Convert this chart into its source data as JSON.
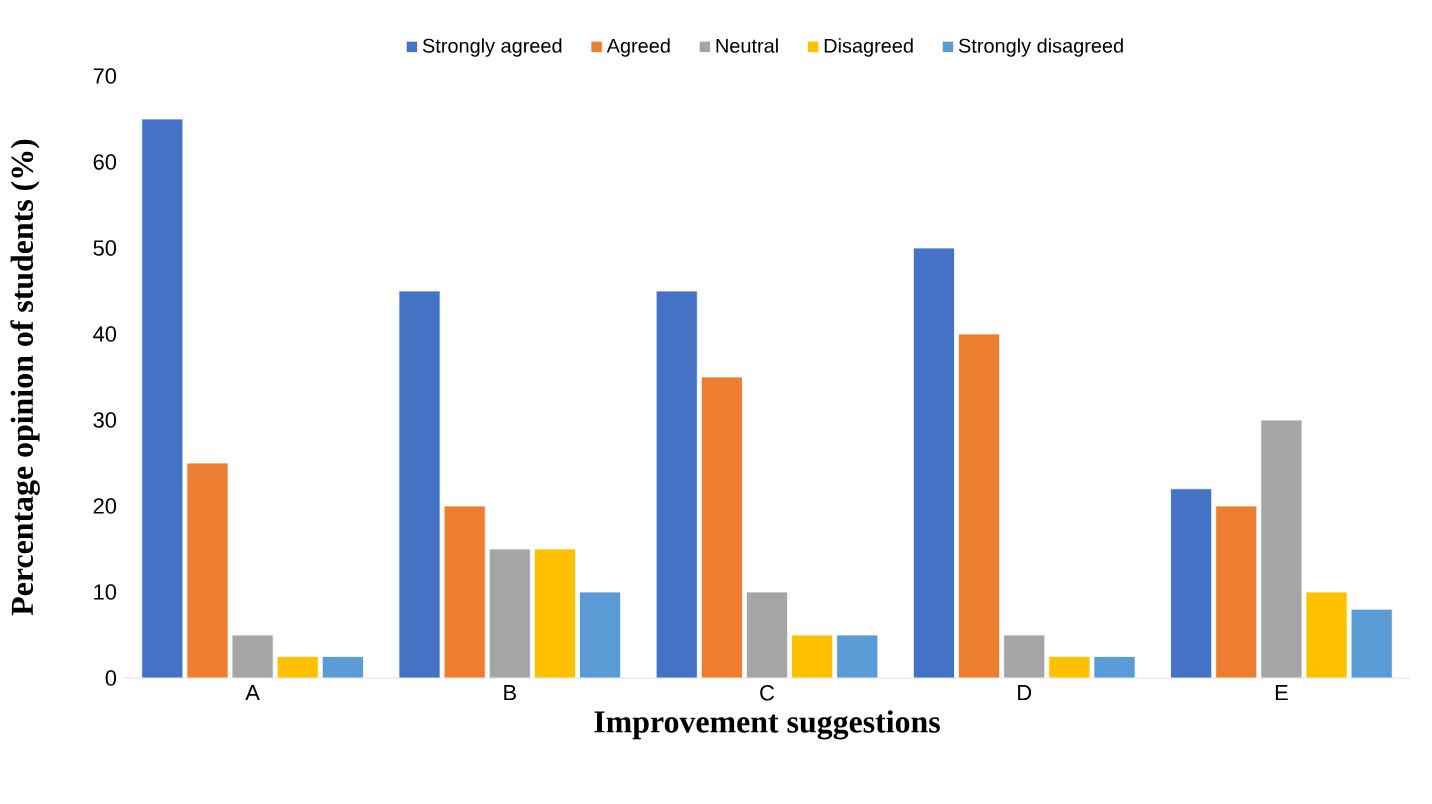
{
  "chart_data": {
    "type": "bar",
    "xlabel": "Improvement suggestions",
    "ylabel": "Percentage opinion of students (%)",
    "categories": [
      "A",
      "B",
      "C",
      "D",
      "E"
    ],
    "series": [
      {
        "name": "Strongly agreed",
        "color": "#4472c4",
        "values": [
          65,
          45,
          45,
          50,
          22
        ]
      },
      {
        "name": "Agreed",
        "color": "#ed7d31",
        "values": [
          25,
          20,
          35,
          40,
          20
        ]
      },
      {
        "name": "Neutral",
        "color": "#a5a5a5",
        "values": [
          5,
          15,
          10,
          5,
          30
        ]
      },
      {
        "name": "Disagreed",
        "color": "#ffc000",
        "values": [
          2.5,
          15,
          5,
          2.5,
          10
        ]
      },
      {
        "name": "Strongly disagreed",
        "color": "#5b9bd5",
        "values": [
          2.5,
          10,
          5,
          2.5,
          8
        ]
      }
    ],
    "ylim": [
      0,
      70
    ],
    "yticks": [
      0,
      10,
      20,
      30,
      40,
      50,
      60,
      70
    ],
    "grid": false,
    "legend": "top"
  }
}
